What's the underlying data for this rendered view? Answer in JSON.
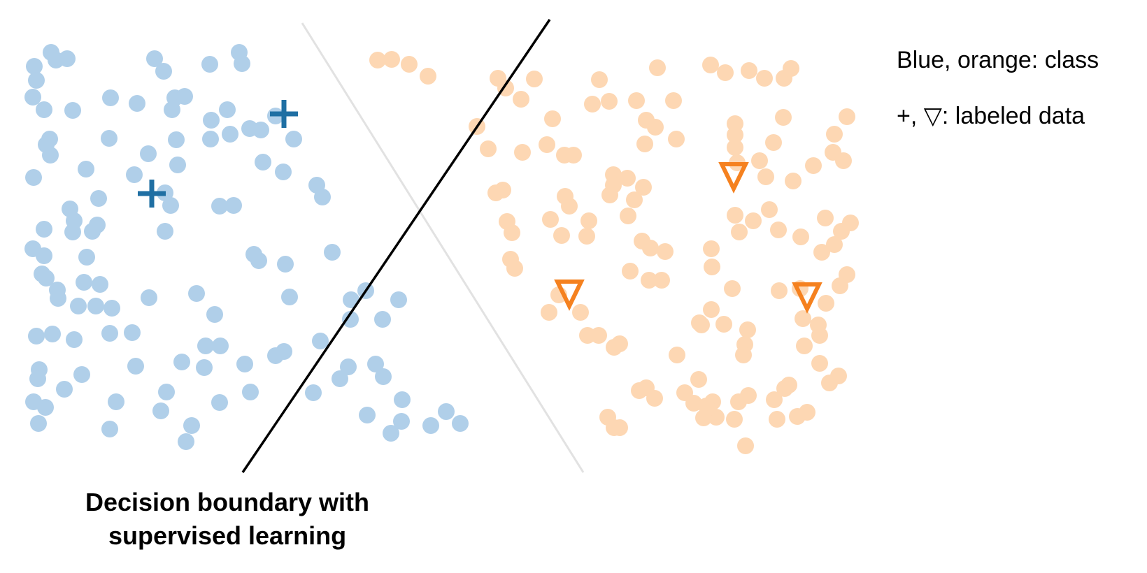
{
  "legend": {
    "line_1": "Blue, orange: class",
    "line_2": "+, ▽: labeled data"
  },
  "caption": {
    "line_1": "Decision boundary with",
    "line_2": "supervised learning"
  },
  "colors": {
    "blue_unlabeled": "#b0cfe9",
    "orange_unlabeled": "#fdd7b3",
    "blue_labeled": "#1f6fa3",
    "orange_labeled": "#f5811f",
    "boundary": "#000000",
    "ghost_boundary": "#e2e2e2"
  },
  "chart_data": {
    "type": "scatter",
    "series": [
      {
        "name": "Blue",
        "marker": "circle",
        "labeled": false,
        "points": [
          [
            73,
            75
          ],
          [
            80,
            86
          ],
          [
            96,
            84
          ],
          [
            49,
            95
          ],
          [
            52,
            115
          ],
          [
            47,
            139
          ],
          [
            63,
            157
          ],
          [
            104,
            158
          ],
          [
            158,
            140
          ],
          [
            196,
            148
          ],
          [
            221,
            84
          ],
          [
            234,
            102
          ],
          [
            250,
            140
          ],
          [
            264,
            138
          ],
          [
            246,
            157
          ],
          [
            300,
            92
          ],
          [
            342,
            75
          ],
          [
            346,
            91
          ],
          [
            302,
            172
          ],
          [
            325,
            157
          ],
          [
            301,
            199
          ],
          [
            329,
            192
          ],
          [
            357,
            184
          ],
          [
            373,
            186
          ],
          [
            394,
            166
          ],
          [
            420,
            199
          ],
          [
            71,
            199
          ],
          [
            66,
            207
          ],
          [
            72,
            222
          ],
          [
            48,
            254
          ],
          [
            123,
            242
          ],
          [
            156,
            198
          ],
          [
            212,
            220
          ],
          [
            192,
            250
          ],
          [
            252,
            200
          ],
          [
            254,
            236
          ],
          [
            236,
            276
          ],
          [
            244,
            294
          ],
          [
            314,
            295
          ],
          [
            334,
            294
          ],
          [
            376,
            232
          ],
          [
            405,
            246
          ],
          [
            453,
            265
          ],
          [
            461,
            282
          ],
          [
            141,
            284
          ],
          [
            100,
            299
          ],
          [
            106,
            316
          ],
          [
            104,
            332
          ],
          [
            132,
            331
          ],
          [
            139,
            322
          ],
          [
            63,
            328
          ],
          [
            47,
            356
          ],
          [
            63,
            366
          ],
          [
            124,
            368
          ],
          [
            236,
            331
          ],
          [
            475,
            361
          ],
          [
            370,
            373
          ],
          [
            363,
            364
          ],
          [
            408,
            378
          ],
          [
            60,
            392
          ],
          [
            66,
            398
          ],
          [
            82,
            415
          ],
          [
            83,
            427
          ],
          [
            120,
            404
          ],
          [
            143,
            407
          ],
          [
            112,
            438
          ],
          [
            137,
            438
          ],
          [
            160,
            441
          ],
          [
            213,
            426
          ],
          [
            281,
            420
          ],
          [
            307,
            450
          ],
          [
            52,
            481
          ],
          [
            75,
            478
          ],
          [
            106,
            486
          ],
          [
            157,
            477
          ],
          [
            189,
            476
          ],
          [
            414,
            425
          ],
          [
            502,
            429
          ],
          [
            523,
            416
          ],
          [
            501,
            457
          ],
          [
            547,
            457
          ],
          [
            570,
            429
          ],
          [
            458,
            488
          ],
          [
            294,
            495
          ],
          [
            315,
            495
          ],
          [
            260,
            518
          ],
          [
            292,
            526
          ],
          [
            194,
            524
          ],
          [
            117,
            536
          ],
          [
            56,
            529
          ],
          [
            54,
            542
          ],
          [
            92,
            557
          ],
          [
            48,
            575
          ],
          [
            65,
            583
          ],
          [
            55,
            606
          ],
          [
            166,
            575
          ],
          [
            238,
            561
          ],
          [
            230,
            588
          ],
          [
            157,
            614
          ],
          [
            274,
            609
          ],
          [
            266,
            632
          ],
          [
            314,
            576
          ],
          [
            350,
            521
          ],
          [
            358,
            561
          ],
          [
            394,
            509
          ],
          [
            406,
            503
          ],
          [
            498,
            525
          ],
          [
            537,
            521
          ],
          [
            548,
            539
          ],
          [
            486,
            542
          ],
          [
            448,
            562
          ],
          [
            525,
            594
          ],
          [
            575,
            572
          ],
          [
            574,
            603
          ],
          [
            559,
            620
          ],
          [
            616,
            609
          ],
          [
            638,
            589
          ],
          [
            658,
            606
          ]
        ]
      },
      {
        "name": "Orange",
        "marker": "circle",
        "labeled": false,
        "points": [
          [
            540,
            86
          ],
          [
            560,
            85
          ],
          [
            585,
            92
          ],
          [
            612,
            109
          ],
          [
            712,
            112
          ],
          [
            723,
            126
          ],
          [
            764,
            113
          ],
          [
            857,
            114
          ],
          [
            940,
            97
          ],
          [
            1016,
            93
          ],
          [
            1037,
            104
          ],
          [
            1071,
            101
          ],
          [
            1093,
            112
          ],
          [
            1121,
            112
          ],
          [
            1131,
            98
          ],
          [
            745,
            142
          ],
          [
            847,
            149
          ],
          [
            871,
            145
          ],
          [
            910,
            144
          ],
          [
            963,
            144
          ],
          [
            790,
            170
          ],
          [
            924,
            172
          ],
          [
            937,
            182
          ],
          [
            682,
            181
          ],
          [
            698,
            213
          ],
          [
            747,
            218
          ],
          [
            782,
            207
          ],
          [
            807,
            222
          ],
          [
            820,
            222
          ],
          [
            922,
            206
          ],
          [
            967,
            199
          ],
          [
            1051,
            177
          ],
          [
            1120,
            168
          ],
          [
            1193,
            192
          ],
          [
            1211,
            167
          ],
          [
            1051,
            193
          ],
          [
            1051,
            211
          ],
          [
            1106,
            204
          ],
          [
            1086,
            230
          ],
          [
            1191,
            218
          ],
          [
            1206,
            230
          ],
          [
            1134,
            259
          ],
          [
            1163,
            237
          ],
          [
            1095,
            253
          ],
          [
            1054,
            233
          ],
          [
            877,
            250
          ],
          [
            877,
            265
          ],
          [
            897,
            255
          ],
          [
            920,
            268
          ],
          [
            872,
            279
          ],
          [
            907,
            286
          ],
          [
            709,
            276
          ],
          [
            719,
            272
          ],
          [
            808,
            281
          ],
          [
            814,
            295
          ],
          [
            787,
            314
          ],
          [
            842,
            316
          ],
          [
            803,
            337
          ],
          [
            839,
            338
          ],
          [
            898,
            309
          ],
          [
            725,
            317
          ],
          [
            732,
            333
          ],
          [
            1051,
            308
          ],
          [
            1077,
            316
          ],
          [
            1057,
            332
          ],
          [
            1100,
            300
          ],
          [
            1113,
            329
          ],
          [
            1145,
            339
          ],
          [
            1180,
            312
          ],
          [
            1203,
            331
          ],
          [
            1216,
            319
          ],
          [
            1193,
            350
          ],
          [
            1175,
            361
          ],
          [
            918,
            345
          ],
          [
            930,
            355
          ],
          [
            951,
            360
          ],
          [
            1017,
            356
          ],
          [
            1018,
            382
          ],
          [
            730,
            371
          ],
          [
            736,
            384
          ],
          [
            901,
            388
          ],
          [
            928,
            401
          ],
          [
            946,
            401
          ],
          [
            1047,
            413
          ],
          [
            1211,
            393
          ],
          [
            1201,
            409
          ],
          [
            1181,
            434
          ],
          [
            1114,
            416
          ],
          [
            1144,
            413
          ],
          [
            1017,
            443
          ],
          [
            1000,
            462
          ],
          [
            1003,
            465
          ],
          [
            1035,
            464
          ],
          [
            1069,
            472
          ],
          [
            1065,
            493
          ],
          [
            1063,
            508
          ],
          [
            1170,
            465
          ],
          [
            1148,
            456
          ],
          [
            1172,
            480
          ],
          [
            1150,
            495
          ],
          [
            1172,
            520
          ],
          [
            1186,
            548
          ],
          [
            1128,
            551
          ],
          [
            1107,
            572
          ],
          [
            1111,
            600
          ],
          [
            1140,
            596
          ],
          [
            1154,
            590
          ],
          [
            1199,
            538
          ],
          [
            1122,
            556
          ],
          [
            1070,
            566
          ],
          [
            1056,
            575
          ],
          [
            1050,
            600
          ],
          [
            1019,
            575
          ],
          [
            1024,
            597
          ],
          [
            1066,
            638
          ],
          [
            999,
            543
          ],
          [
            992,
            577
          ],
          [
            1010,
            581
          ],
          [
            1006,
            598
          ],
          [
            979,
            562
          ],
          [
            924,
            555
          ],
          [
            936,
            570
          ],
          [
            840,
            480
          ],
          [
            856,
            480
          ],
          [
            878,
            497
          ],
          [
            886,
            492
          ],
          [
            799,
            422
          ],
          [
            830,
            447
          ],
          [
            785,
            447
          ],
          [
            968,
            508
          ],
          [
            914,
            559
          ],
          [
            869,
            597
          ],
          [
            878,
            612
          ],
          [
            886,
            612
          ]
        ]
      },
      {
        "name": "Blue labeled",
        "marker": "plus",
        "labeled": true,
        "points": [
          [
            406,
            163
          ],
          [
            217,
            277
          ]
        ]
      },
      {
        "name": "Orange labeled",
        "marker": "triangle-down",
        "labeled": true,
        "points": [
          [
            1049,
            249
          ],
          [
            814,
            417
          ],
          [
            1154,
            421
          ]
        ]
      }
    ],
    "boundary": {
      "type": "line",
      "from": [
        347,
        676
      ],
      "to": [
        786,
        28
      ],
      "stroke": "#000000"
    },
    "ghost_boundary": {
      "type": "line",
      "from": [
        432,
        33
      ],
      "to": [
        834,
        676
      ],
      "stroke": "#e2e2e2"
    },
    "title": "",
    "xlabel": "",
    "ylabel": "",
    "xlim": [
      0,
      1240
    ],
    "ylim": [
      0,
      680
    ],
    "y_inverted": true,
    "grid": false,
    "axes_visible": false,
    "legend_placement": "right"
  }
}
